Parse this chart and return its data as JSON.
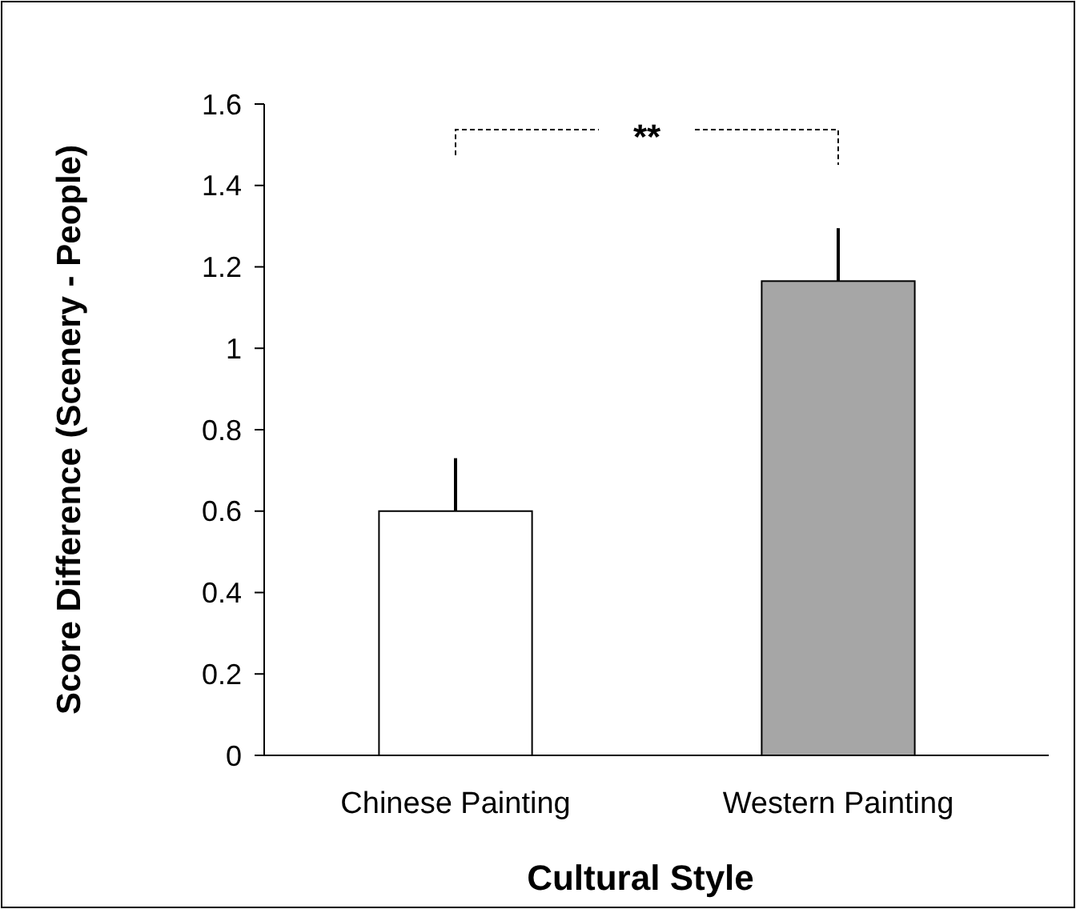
{
  "chart_data": {
    "type": "bar",
    "xlabel": "Cultural Style",
    "ylabel": "Score Difference (Scenery - People)",
    "categories": [
      "Chinese Painting",
      "Western Painting"
    ],
    "values": [
      0.6,
      1.165
    ],
    "colors": [
      "#ffffff",
      "#a6a6a6"
    ],
    "errors": [
      [
        0.6,
        0.73
      ],
      [
        1.165,
        1.295
      ]
    ],
    "ylim": [
      0,
      1.6
    ],
    "yticks": [
      0,
      0.2,
      0.4,
      0.6,
      0.8,
      1,
      1.2,
      1.4,
      1.6
    ],
    "annotations": [
      "**"
    ]
  }
}
